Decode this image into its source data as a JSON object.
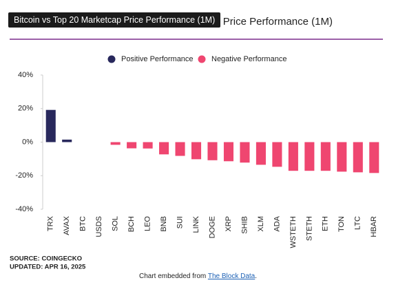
{
  "chart_data": {
    "type": "bar",
    "title": "Bitcoin vs Top 20 Marketcap Price Performance (1M)",
    "legend": [
      {
        "name": "Positive Performance",
        "color": "#28285c"
      },
      {
        "name": "Negative Performance",
        "color": "#ef4670"
      }
    ],
    "categories": [
      "TRX",
      "AVAX",
      "BTC",
      "USDS",
      "SOL",
      "BCH",
      "LEO",
      "BNB",
      "SUI",
      "LINK",
      "DOGE",
      "XRP",
      "SHIB",
      "XLM",
      "ADA",
      "WSTETH",
      "STETH",
      "ETH",
      "TON",
      "LTC",
      "HBAR"
    ],
    "values": [
      19.2,
      1.5,
      0,
      0,
      -1.6,
      -3.7,
      -3.8,
      -7.3,
      -8.2,
      -10.2,
      -10.8,
      -11.4,
      -12.2,
      -13.5,
      -14.7,
      -17.1,
      -17.1,
      -17.1,
      -17.6,
      -18,
      -18.4
    ],
    "ylim": [
      -40,
      40
    ],
    "yticks": [
      {
        "value": -40,
        "label": "-40%"
      },
      {
        "value": -20,
        "label": "-20%"
      },
      {
        "value": 0,
        "label": "0%"
      },
      {
        "value": 20,
        "label": "20%"
      },
      {
        "value": 40,
        "label": "40%"
      }
    ],
    "grid": false
  },
  "footer": {
    "source": "SOURCE: COINGECKO",
    "updated": "UPDATED: APR 16, 2025",
    "embed_text": "Chart embedded from ",
    "embed_link": "The Block Data",
    "embed_end": "."
  }
}
